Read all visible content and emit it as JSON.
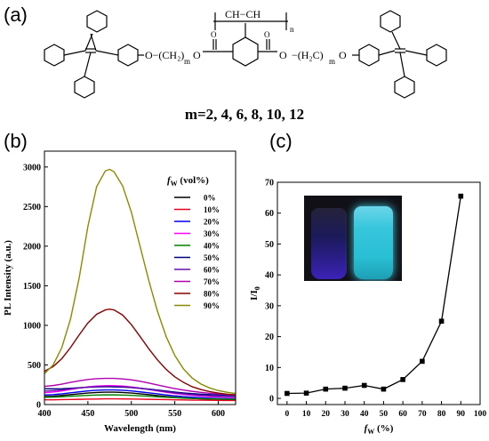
{
  "panels": {
    "a": "(a)",
    "b": "(b)",
    "c": "(c)"
  },
  "structure": {
    "polymer_unit": "CH−CH",
    "subscript_n": "n",
    "subscript_m": "m",
    "carbonyl_o": "O",
    "ester_o": "O",
    "spacer_left": "O−(CH₂)",
    "spacer_right": "−(H₂C)",
    "caption": "m=2, 4, 6, 8, 10, 12"
  },
  "chart_data": [
    {
      "type": "line",
      "xlabel": "Wavelength (nm)",
      "ylabel": "PL Intensity (a.u.)",
      "xlim": [
        400,
        620
      ],
      "ylim": [
        0,
        3200
      ],
      "xticks": [
        400,
        450,
        500,
        550,
        600
      ],
      "yticks": [
        0,
        500,
        1000,
        1500,
        2000,
        2500,
        3000
      ],
      "legend_title": "fw (vol%)",
      "legend_title_sub": "W",
      "legend_title_main": "f",
      "legend_title_rest": " (vol%)",
      "legend_position": "top-right",
      "x": [
        400,
        410,
        420,
        430,
        440,
        450,
        460,
        470,
        475,
        480,
        490,
        500,
        510,
        520,
        530,
        540,
        550,
        560,
        570,
        580,
        590,
        600,
        610,
        620
      ],
      "series": [
        {
          "name": "0%",
          "color": "#000000",
          "values": [
            100,
            105,
            115,
            125,
            135,
            145,
            152,
            156,
            157,
            156,
            152,
            145,
            135,
            125,
            113,
            102,
            92,
            84,
            78,
            73,
            69,
            66,
            63,
            61
          ]
        },
        {
          "name": "10%",
          "color": "#e8001c",
          "values": [
            60,
            60,
            62,
            64,
            66,
            68,
            70,
            72,
            72,
            72,
            71,
            70,
            68,
            66,
            64,
            62,
            60,
            58,
            56,
            55,
            54,
            53,
            52,
            51
          ]
        },
        {
          "name": "20%",
          "color": "#0000ee",
          "values": [
            120,
            125,
            135,
            148,
            160,
            172,
            180,
            184,
            185,
            184,
            180,
            172,
            160,
            148,
            135,
            122,
            110,
            100,
            92,
            86,
            81,
            77,
            74,
            72
          ]
        },
        {
          "name": "30%",
          "color": "#ff00ff",
          "values": [
            150,
            158,
            172,
            190,
            208,
            224,
            234,
            238,
            239,
            238,
            233,
            223,
            208,
            190,
            172,
            155,
            140,
            127,
            116,
            108,
            101,
            96,
            92,
            89
          ]
        },
        {
          "name": "40%",
          "color": "#008000",
          "values": [
            90,
            93,
            98,
            104,
            110,
            116,
            120,
            122,
            123,
            122,
            120,
            116,
            110,
            104,
            98,
            92,
            86,
            81,
            77,
            74,
            71,
            69,
            67,
            66
          ]
        },
        {
          "name": "50%",
          "color": "#000080",
          "values": [
            200,
            198,
            200,
            206,
            212,
            218,
            222,
            224,
            224,
            223,
            220,
            214,
            205,
            195,
            183,
            170,
            158,
            147,
            138,
            131,
            125,
            121,
            118,
            116
          ]
        },
        {
          "name": "60%",
          "color": "#6a0dad",
          "values": [
            170,
            175,
            185,
            198,
            210,
            220,
            226,
            229,
            230,
            229,
            225,
            217,
            205,
            191,
            176,
            161,
            147,
            135,
            125,
            117,
            110,
            105,
            101,
            98
          ]
        },
        {
          "name": "70%",
          "color": "#b000b0",
          "values": [
            230,
            240,
            258,
            280,
            300,
            316,
            326,
            330,
            331,
            330,
            324,
            312,
            294,
            272,
            248,
            224,
            202,
            183,
            167,
            154,
            143,
            134,
            127,
            122
          ]
        },
        {
          "name": "80%",
          "color": "#8b0000",
          "values": [
            420,
            480,
            580,
            720,
            880,
            1030,
            1140,
            1195,
            1205,
            1195,
            1130,
            1010,
            860,
            705,
            565,
            445,
            350,
            280,
            225,
            190,
            163,
            145,
            131,
            121
          ]
        },
        {
          "name": "90%",
          "color": "#8b8b00",
          "values": [
            390,
            500,
            720,
            1080,
            1600,
            2250,
            2750,
            2950,
            2970,
            2940,
            2760,
            2430,
            2000,
            1570,
            1180,
            860,
            620,
            450,
            335,
            260,
            210,
            177,
            155,
            140
          ]
        }
      ]
    },
    {
      "type": "line",
      "xlabel": "fW (%)",
      "xlabel_main": "f",
      "xlabel_sub": "W",
      "xlabel_rest": " (%)",
      "ylabel": "I/I0",
      "ylabel_main": "I/I",
      "ylabel_sub": "0",
      "xlim": [
        -5,
        100
      ],
      "ylim": [
        -2,
        70
      ],
      "xticks": [
        0,
        10,
        20,
        30,
        40,
        50,
        60,
        70,
        80,
        90,
        100
      ],
      "yticks": [
        0,
        10,
        20,
        30,
        40,
        50,
        60,
        70
      ],
      "x": [
        0,
        10,
        20,
        30,
        40,
        50,
        60,
        70,
        80,
        90
      ],
      "series": [
        {
          "color": "#000000",
          "values": [
            1.6,
            1.7,
            3.0,
            3.3,
            4.2,
            3.0,
            6.1,
            12.0,
            25.0,
            65.5
          ]
        }
      ]
    }
  ]
}
